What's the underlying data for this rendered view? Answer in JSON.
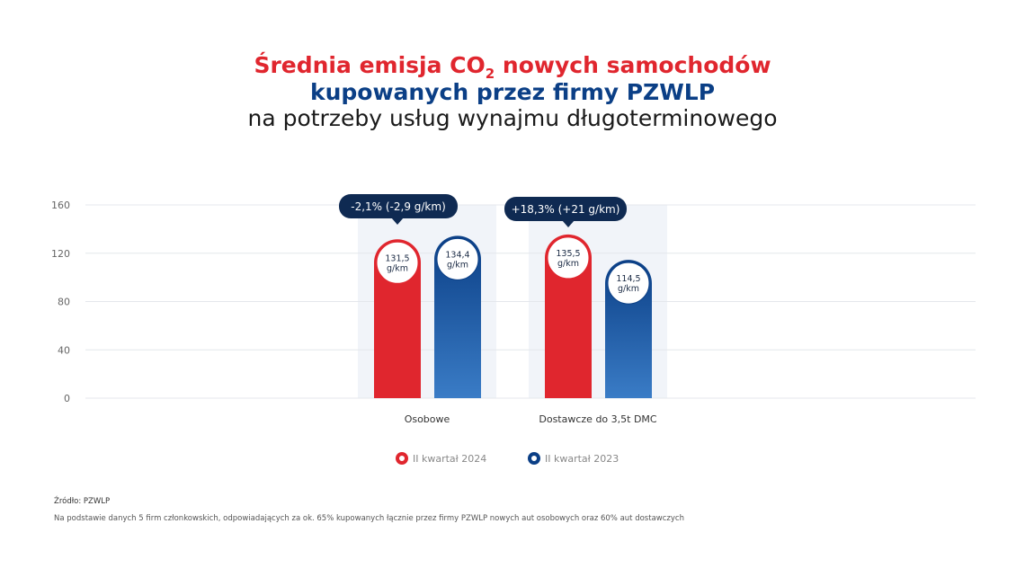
{
  "title": {
    "line1_pre": "Średnia emisja CO",
    "line1_sub": "2",
    "line1_post": " nowych samochodów",
    "line2": "kupowanych przez firmy PZWLP",
    "line3": "na potrzeby usług wynajmu długoterminowego"
  },
  "colors": {
    "series_2024": "#e0262e",
    "series_2023": "#0b3f86",
    "callout": "#0f2a52"
  },
  "chart_data": {
    "type": "bar",
    "categories": [
      "Osobowe",
      "Dostawcze do 3,5t DMC"
    ],
    "series": [
      {
        "name": "II kwartał 2024",
        "values": [
          131.5,
          135.5
        ],
        "labels": [
          "131,5",
          "135,5"
        ]
      },
      {
        "name": "II kwartał 2023",
        "values": [
          134.4,
          114.5
        ],
        "labels": [
          "134,4",
          "114,5"
        ]
      }
    ],
    "unit": "g/km",
    "callouts": [
      "-2,1% (-2,9 g/km)",
      "+18,3% (+21 g/km)"
    ],
    "yticks": [
      "0",
      "40",
      "80",
      "120",
      "160"
    ],
    "ylim": [
      0,
      160
    ],
    "grid": true,
    "legend": "bottom-center"
  },
  "footer": {
    "source": "Źródło: PZWLP",
    "note": "Na podstawie danych 5 firm członkowskich, odpowiadających za ok. 65% kupowanych łącznie przez firmy PZWLP nowych aut osobowych oraz 60% aut dostawczych"
  }
}
